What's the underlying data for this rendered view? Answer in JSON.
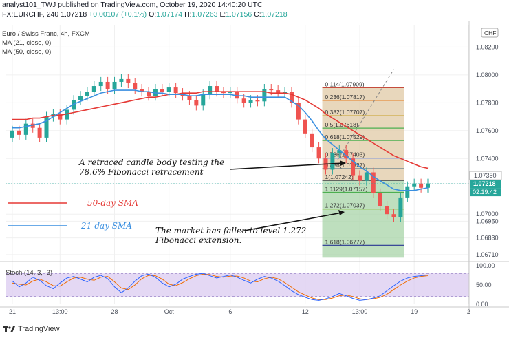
{
  "header": {
    "line1": "analyst101_TWJ published on TradingView.com, October 19, 2020 14:40:20 UTC",
    "symbol": "FX:EURCHF, 240",
    "price": "1.07218",
    "change": "+0.00107 (+0.1%)",
    "o_label": "O:",
    "o_val": "1.07174",
    "h_label": "H:",
    "h_val": "1.07263",
    "l_label": "L:",
    "l_val": "1.07156",
    "c_label": "C:",
    "c_val": "1.07218"
  },
  "legend": {
    "title": "Euro / Swiss Franc, 4h, FXCM",
    "ma21": "MA (21, close, 0)",
    "ma50": "MA (50, close, 0)"
  },
  "currency_badge": "CHF",
  "annotations": {
    "a1_l1": "A retraced candle body testing the",
    "a1_l2": "78.6% Fibonacci retracement",
    "a2_l1": "The market has fallen to level 1.272",
    "a2_l2": "Fibonacci extension.",
    "sma50": "50-day SMA",
    "sma21": "21-day SMA"
  },
  "price_tags": {
    "last": "1.07218",
    "countdown": "02:19:42",
    "hidden": "1.07350"
  },
  "stoch": {
    "label": "Stoch (14, 3, -3)",
    "ticks": [
      "100.00",
      "50.00",
      "0.00"
    ]
  },
  "footer": {
    "brand": "TradingView"
  },
  "colors": {
    "up": "#26a69a",
    "down": "#ef5350",
    "ma21": "#3a8fe0",
    "ma50": "#e53935",
    "fib_top": "#e0c9a6",
    "fib_bottom": "#a8d4a8",
    "stoch_band": "#d8c8f0"
  },
  "chart_data": {
    "type": "candlestick",
    "title": "Euro / Swiss Franc, 4h, FXCM",
    "y_ticks": [
      1.082,
      1.08,
      1.078,
      1.076,
      1.074,
      1.07218,
      1.07,
      1.0695,
      1.0683,
      1.0671
    ],
    "y_tick_labels": [
      "1.08200",
      "1.08000",
      "1.07800",
      "1.07600",
      "1.07400",
      "1.07218",
      "1.07000",
      "1.06950",
      "1.06830",
      "1.06710"
    ],
    "ylim": [
      1.0666,
      1.0836
    ],
    "x_ticks": [
      "21",
      "13:00",
      "28",
      "Oct",
      "6",
      "12",
      "13:00",
      "19",
      "2"
    ],
    "x_tick_positions": [
      0,
      7,
      15,
      23,
      32,
      43,
      51,
      59,
      67
    ],
    "closes": [
      1.076,
      1.0757,
      1.0765,
      1.0762,
      1.0755,
      1.077,
      1.0772,
      1.0768,
      1.0775,
      1.0782,
      1.0785,
      1.0788,
      1.0792,
      1.0795,
      1.079,
      1.0795,
      1.0797,
      1.0794,
      1.079,
      1.0788,
      1.0785,
      1.079,
      1.0788,
      1.0791,
      1.0787,
      1.0785,
      1.0782,
      1.0778,
      1.0786,
      1.0792,
      1.0788,
      1.0787,
      1.0788,
      1.0783,
      1.078,
      1.0782,
      1.0781,
      1.079,
      1.0789,
      1.0787,
      1.0788,
      1.078,
      1.0768,
      1.0758,
      1.0748,
      1.074,
      1.0732,
      1.0744,
      1.0746,
      1.074,
      1.0728,
      1.0724,
      1.073,
      1.0715,
      1.0706,
      1.07,
      1.0698,
      1.0712,
      1.072,
      1.0722,
      1.0719,
      1.0722
    ],
    "opens": [
      1.0755,
      1.076,
      1.0757,
      1.0765,
      1.0762,
      1.0755,
      1.077,
      1.0772,
      1.0768,
      1.0775,
      1.0782,
      1.0785,
      1.0788,
      1.0792,
      1.0795,
      1.079,
      1.0795,
      1.0797,
      1.0794,
      1.079,
      1.0788,
      1.0785,
      1.079,
      1.0788,
      1.0791,
      1.0787,
      1.0785,
      1.0782,
      1.0778,
      1.0786,
      1.0792,
      1.0788,
      1.0787,
      1.0788,
      1.0783,
      1.078,
      1.0782,
      1.0781,
      1.079,
      1.0789,
      1.0787,
      1.0788,
      1.078,
      1.0768,
      1.0758,
      1.0748,
      1.074,
      1.0732,
      1.0744,
      1.0746,
      1.074,
      1.0728,
      1.0724,
      1.073,
      1.0715,
      1.0706,
      1.07,
      1.0698,
      1.0712,
      1.072,
      1.0722,
      1.0719
    ],
    "ma21": [
      1.0762,
      1.0762,
      1.0763,
      1.0764,
      1.0765,
      1.0767,
      1.077,
      1.0773,
      1.0776,
      1.0779,
      1.0781,
      1.0783,
      1.0785,
      1.0787,
      1.0788,
      1.0789,
      1.0789,
      1.0789,
      1.0789,
      1.0788,
      1.0788,
      1.0787,
      1.0787,
      1.0786,
      1.0786,
      1.0786,
      1.0785,
      1.0785,
      1.0786,
      1.0786,
      1.0786,
      1.0786,
      1.0786,
      1.0785,
      1.0785,
      1.0784,
      1.0784,
      1.0784,
      1.0784,
      1.0784,
      1.0784,
      1.0781,
      1.0778,
      1.0773,
      1.0767,
      1.076,
      1.0754,
      1.075,
      1.0746,
      1.0742,
      1.0738,
      1.0734,
      1.0731,
      1.0727,
      1.0724,
      1.0721,
      1.0718,
      1.0717,
      1.0717,
      1.0717,
      1.0718,
      1.0719
    ],
    "ma50": [
      1.0768,
      1.0768,
      1.0768,
      1.0769,
      1.0769,
      1.077,
      1.0771,
      1.0771,
      1.0772,
      1.0773,
      1.0774,
      1.0775,
      1.0776,
      1.0777,
      1.0778,
      1.0779,
      1.078,
      1.0781,
      1.0782,
      1.0783,
      1.0784,
      1.0784,
      1.0785,
      1.0786,
      1.0786,
      1.0787,
      1.0787,
      1.0787,
      1.0788,
      1.0788,
      1.0788,
      1.0788,
      1.0788,
      1.0788,
      1.0788,
      1.0788,
      1.0788,
      1.0788,
      1.0787,
      1.0787,
      1.0787,
      1.0786,
      1.0784,
      1.0782,
      1.0779,
      1.0776,
      1.0772,
      1.0769,
      1.0766,
      1.0763,
      1.076,
      1.0757,
      1.0754,
      1.0751,
      1.0748,
      1.0745,
      1.0742,
      1.074,
      1.0738,
      1.0736,
      1.0734,
      1.0733
    ],
    "fib_levels": [
      {
        "label": "0.114(1.07909)",
        "value": 1.07909,
        "color": "#c0392b"
      },
      {
        "label": "0.236(1.07817)",
        "value": 1.07817,
        "color": "#e67e22"
      },
      {
        "label": "0.382(1.07707)",
        "value": 1.07707,
        "color": "#c9a227"
      },
      {
        "label": "0.5(1.07618)",
        "value": 1.07618,
        "color": "#4caf50"
      },
      {
        "label": "0.618(1.07529)",
        "value": 1.07529,
        "color": "#4caf50"
      },
      {
        "label": "0.786(1.07403)",
        "value": 1.07403,
        "color": "#2962ff"
      },
      {
        "label": "0.886(1.07327)",
        "value": 1.07327,
        "color": "#607d8b"
      },
      {
        "label": "1(1.07242)",
        "value": 1.07242,
        "color": "#555555"
      },
      {
        "label": "1.1129(1.07157)",
        "value": 1.07157,
        "color": "#4caf50"
      },
      {
        "label": "1.272(1.07037)",
        "value": 1.07037,
        "color": "#8bc34a"
      },
      {
        "label": "1.618(1.06777)",
        "value": 1.06777,
        "color": "#283593"
      }
    ],
    "stoch_k": [
      60,
      45,
      55,
      70,
      62,
      48,
      40,
      55,
      68,
      72,
      65,
      58,
      70,
      75,
      66,
      45,
      30,
      42,
      60,
      74,
      78,
      70,
      55,
      45,
      52,
      65,
      72,
      78,
      80,
      74,
      68,
      72,
      76,
      70,
      62,
      55,
      65,
      72,
      68,
      60,
      48,
      35,
      25,
      18,
      12,
      10,
      14,
      20,
      28,
      22,
      15,
      10,
      12,
      16,
      22,
      35,
      48,
      60,
      68,
      72,
      74,
      76
    ],
    "stoch_d": [
      55,
      52,
      50,
      60,
      65,
      58,
      48,
      47,
      58,
      68,
      70,
      65,
      62,
      70,
      72,
      58,
      42,
      38,
      50,
      66,
      75,
      74,
      65,
      52,
      48,
      56,
      66,
      74,
      78,
      77,
      72,
      70,
      73,
      73,
      68,
      60,
      58,
      66,
      70,
      66,
      56,
      44,
      32,
      24,
      16,
      12,
      12,
      16,
      22,
      24,
      20,
      14,
      12,
      14,
      18,
      26,
      38,
      50,
      60,
      68,
      72,
      74
    ],
    "stoch_range": [
      0,
      100
    ]
  }
}
